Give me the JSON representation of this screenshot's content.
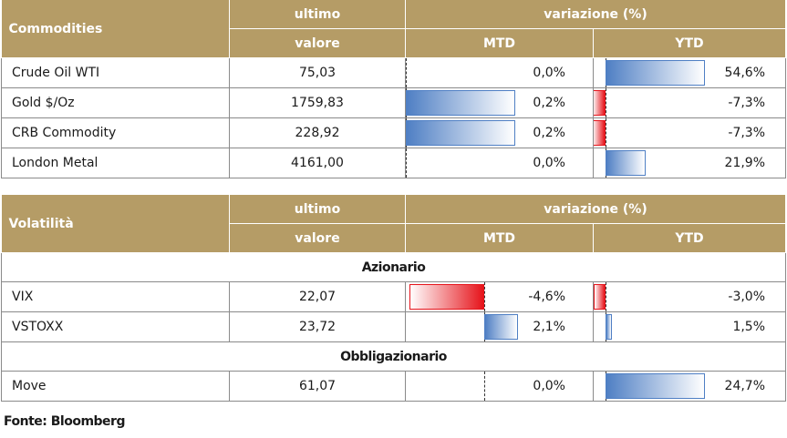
{
  "commodities": {
    "header": {
      "category": "Commodities",
      "last_top": "ultimo",
      "last_bottom": "valore",
      "change": "variazione (%)",
      "mtd": "MTD",
      "ytd": "YTD"
    },
    "rows": [
      {
        "name": "Crude Oil WTI",
        "value": "75,03",
        "mtd": "0,0%",
        "ytd": "54,6%",
        "mtd_pct": 0.0,
        "ytd_pct": 54.6
      },
      {
        "name": "Gold $/Oz",
        "value": "1759,83",
        "mtd": "0,2%",
        "ytd": "-7,3%",
        "mtd_pct": 0.2,
        "ytd_pct": -7.3
      },
      {
        "name": "CRB Commodity",
        "value": "228,92",
        "mtd": "0,2%",
        "ytd": "-7,3%",
        "mtd_pct": 0.2,
        "ytd_pct": -7.3
      },
      {
        "name": "London Metal",
        "value": "4161,00",
        "mtd": "0,0%",
        "ytd": "21,9%",
        "mtd_pct": 0.0,
        "ytd_pct": 21.9
      }
    ]
  },
  "volatility": {
    "header": {
      "category": "Volatilità",
      "last_top": "ultimo",
      "last_bottom": "valore",
      "change": "variazione (%)",
      "mtd": "MTD",
      "ytd": "YTD"
    },
    "section_equity": "Azionario",
    "section_bond": "Obbligazionario",
    "rows": [
      {
        "name": "VIX",
        "value": "22,07",
        "mtd": "-4,6%",
        "ytd": "-3,0%",
        "mtd_pct": -4.6,
        "ytd_pct": -3.0
      },
      {
        "name": "VSTOXX",
        "value": "23,72",
        "mtd": "2,1%",
        "ytd": "1,5%",
        "mtd_pct": 2.1,
        "ytd_pct": 1.5
      },
      {
        "name": "Move",
        "value": "61,07",
        "mtd": "0,0%",
        "ytd": "24,7%",
        "mtd_pct": 0.0,
        "ytd_pct": 24.7
      }
    ]
  },
  "source": "Fonte: Bloomberg",
  "colors": {
    "header": "#b59c66",
    "positive": "#4f7fc4",
    "negative": "#e6141b"
  }
}
